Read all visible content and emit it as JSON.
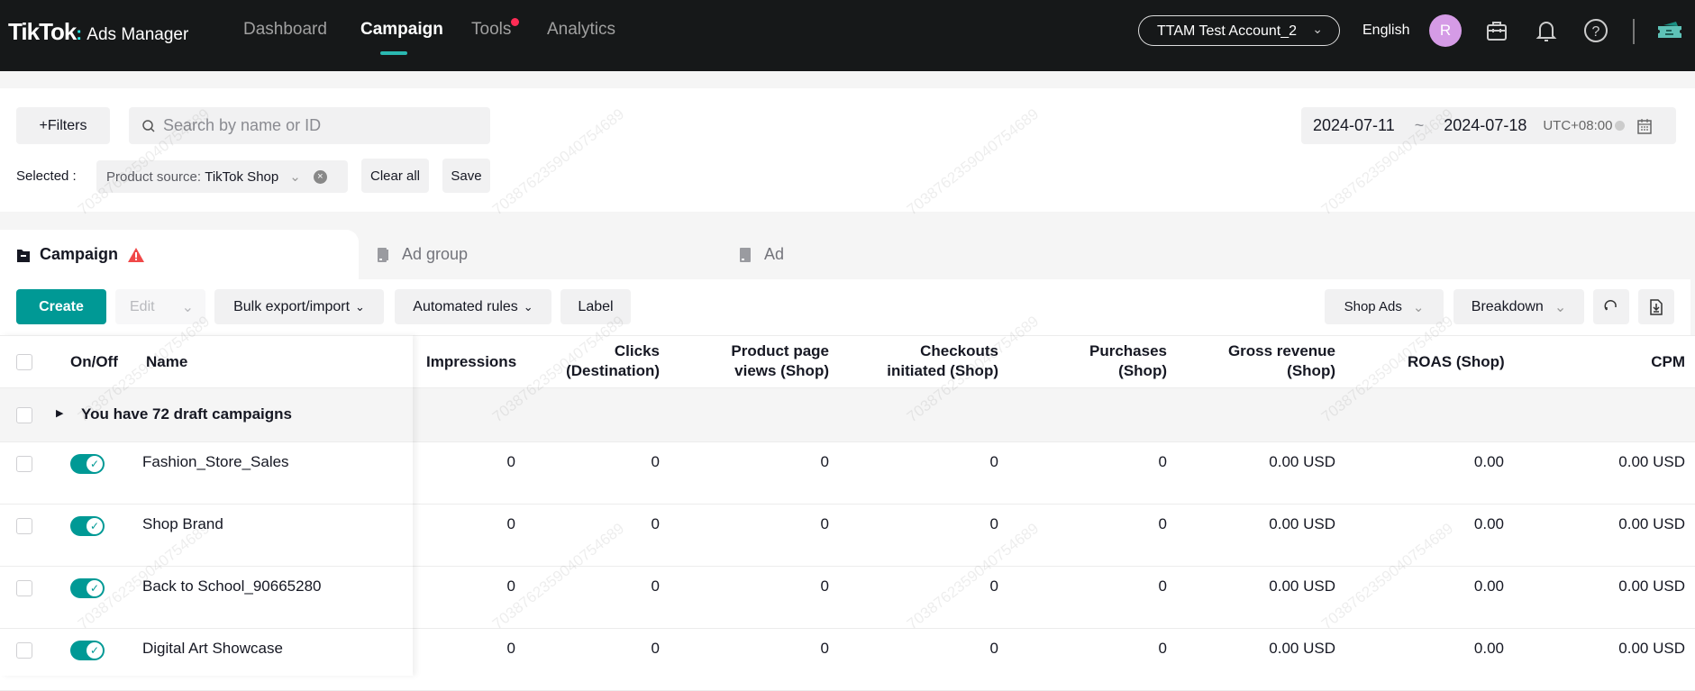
{
  "header": {
    "logo": "TikTok",
    "logo_sub": "Ads Manager",
    "nav": [
      "Dashboard",
      "Campaign",
      "Tools",
      "Analytics"
    ],
    "active_nav": "Campaign",
    "account": "TTAM Test Account_2",
    "language": "English",
    "avatar_initial": "R",
    "avatar_color": "#d59be6"
  },
  "filters": {
    "filters_label": "+Filters",
    "search_placeholder": "Search by name or ID",
    "selected_label": "Selected :",
    "chip_key": "Product source:",
    "chip_value": "TikTok Shop",
    "clear_all": "Clear all",
    "save": "Save",
    "date_start": "2024-07-11",
    "date_sep": "~",
    "date_end": "2024-07-18",
    "timezone": "UTC+08:00"
  },
  "tabs": [
    {
      "label": "Campaign",
      "warning": true
    },
    {
      "label": "Ad group"
    },
    {
      "label": "Ad"
    }
  ],
  "toolbar": {
    "create": "Create",
    "edit": "Edit",
    "bulk": "Bulk export/import",
    "automated": "Automated rules",
    "label": "Label",
    "shop_ads": "Shop Ads",
    "breakdown": "Breakdown"
  },
  "table": {
    "headers": {
      "onoff": "On/Off",
      "name": "Name",
      "impressions": "Impressions",
      "clicks": [
        "Clicks",
        "(Destination)"
      ],
      "ppv": [
        "Product page",
        "views (Shop)"
      ],
      "checkouts": [
        "Checkouts",
        "initiated (Shop)"
      ],
      "purchases": [
        "Purchases",
        "(Shop)"
      ],
      "gross": [
        "Gross revenue",
        "(Shop)"
      ],
      "roas": "ROAS (Shop)",
      "cpm": "CPM"
    },
    "draft_row": "You have 72 draft campaigns",
    "rows": [
      {
        "name": "Fashion_Store_Sales",
        "on": true,
        "impressions": "0",
        "clicks": "0",
        "ppv": "0",
        "checkouts": "0",
        "purchases": "0",
        "gross": "0.00 USD",
        "roas": "0.00",
        "cpm": "0.00 USD"
      },
      {
        "name": "Shop Brand",
        "on": true,
        "impressions": "0",
        "clicks": "0",
        "ppv": "0",
        "checkouts": "0",
        "purchases": "0",
        "gross": "0.00 USD",
        "roas": "0.00",
        "cpm": "0.00 USD"
      },
      {
        "name": "Back to School_90665280",
        "on": true,
        "impressions": "0",
        "clicks": "0",
        "ppv": "0",
        "checkouts": "0",
        "purchases": "0",
        "gross": "0.00 USD",
        "roas": "0.00",
        "cpm": "0.00 USD"
      },
      {
        "name": "Digital Art Showcase",
        "on": true,
        "impressions": "0",
        "clicks": "0",
        "ppv": "0",
        "checkouts": "0",
        "purchases": "0",
        "gross": "0.00 USD",
        "roas": "0.00",
        "cpm": "0.00 USD"
      }
    ]
  },
  "watermark": "7038762359040754689",
  "colors": {
    "accent": "#009995",
    "header_bg": "#161819",
    "warning": "#f04848"
  }
}
